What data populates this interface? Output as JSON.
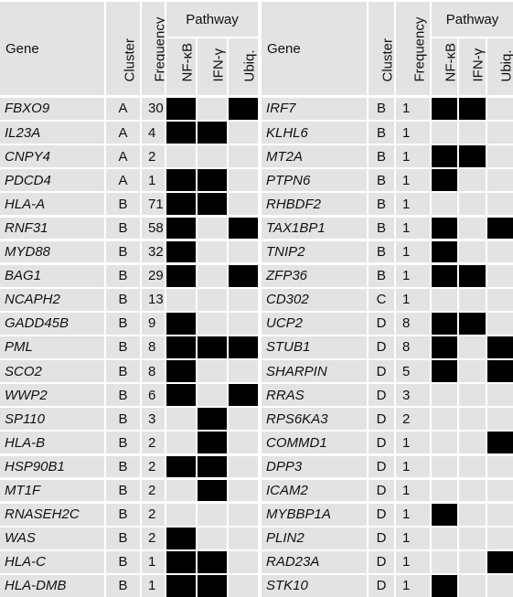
{
  "headers": {
    "gene": "Gene",
    "cluster": "Cluster",
    "frequency": "Frequency",
    "pathway": "Pathway",
    "nfkb": "NF-κB",
    "ifng": "IFN-γ",
    "ubiq": "Ubiq."
  },
  "left_rows": [
    {
      "gene": "FBXO9",
      "cluster": "A",
      "frequency": "30",
      "nfkb": true,
      "ifng": false,
      "ubiq": true
    },
    {
      "gene": "IL23A",
      "cluster": "A",
      "frequency": "4",
      "nfkb": true,
      "ifng": true,
      "ubiq": false
    },
    {
      "gene": "CNPY4",
      "cluster": "A",
      "frequency": "2",
      "nfkb": false,
      "ifng": false,
      "ubiq": false
    },
    {
      "gene": "PDCD4",
      "cluster": "A",
      "frequency": "1",
      "nfkb": true,
      "ifng": true,
      "ubiq": false
    },
    {
      "gene": "HLA-A",
      "cluster": "B",
      "frequency": "71",
      "nfkb": true,
      "ifng": true,
      "ubiq": false
    },
    {
      "gene": "RNF31",
      "cluster": "B",
      "frequency": "58",
      "nfkb": true,
      "ifng": false,
      "ubiq": true
    },
    {
      "gene": "MYD88",
      "cluster": "B",
      "frequency": "32",
      "nfkb": true,
      "ifng": false,
      "ubiq": false
    },
    {
      "gene": "BAG1",
      "cluster": "B",
      "frequency": "29",
      "nfkb": true,
      "ifng": false,
      "ubiq": true
    },
    {
      "gene": "NCAPH2",
      "cluster": "B",
      "frequency": "13",
      "nfkb": false,
      "ifng": false,
      "ubiq": false
    },
    {
      "gene": "GADD45B",
      "cluster": "B",
      "frequency": "9",
      "nfkb": true,
      "ifng": false,
      "ubiq": false
    },
    {
      "gene": "PML",
      "cluster": "B",
      "frequency": "8",
      "nfkb": true,
      "ifng": true,
      "ubiq": true
    },
    {
      "gene": "SCO2",
      "cluster": "B",
      "frequency": "8",
      "nfkb": true,
      "ifng": false,
      "ubiq": false
    },
    {
      "gene": "WWP2",
      "cluster": "B",
      "frequency": "6",
      "nfkb": true,
      "ifng": false,
      "ubiq": true
    },
    {
      "gene": "SP110",
      "cluster": "B",
      "frequency": "3",
      "nfkb": false,
      "ifng": true,
      "ubiq": false
    },
    {
      "gene": "HLA-B",
      "cluster": "B",
      "frequency": "2",
      "nfkb": false,
      "ifng": true,
      "ubiq": false
    },
    {
      "gene": "HSP90B1",
      "cluster": "B",
      "frequency": "2",
      "nfkb": true,
      "ifng": true,
      "ubiq": false
    },
    {
      "gene": "MT1F",
      "cluster": "B",
      "frequency": "2",
      "nfkb": false,
      "ifng": true,
      "ubiq": false
    },
    {
      "gene": "RNASEH2C",
      "cluster": "B",
      "frequency": "2",
      "nfkb": false,
      "ifng": false,
      "ubiq": false
    },
    {
      "gene": "WAS",
      "cluster": "B",
      "frequency": "2",
      "nfkb": true,
      "ifng": false,
      "ubiq": false
    },
    {
      "gene": "HLA-C",
      "cluster": "B",
      "frequency": "1",
      "nfkb": true,
      "ifng": true,
      "ubiq": false
    },
    {
      "gene": "HLA-DMB",
      "cluster": "B",
      "frequency": "1",
      "nfkb": true,
      "ifng": true,
      "ubiq": false
    }
  ],
  "right_rows": [
    {
      "gene": "IRF7",
      "cluster": "B",
      "frequency": "1",
      "nfkb": true,
      "ifng": true,
      "ubiq": false
    },
    {
      "gene": "KLHL6",
      "cluster": "B",
      "frequency": "1",
      "nfkb": false,
      "ifng": false,
      "ubiq": false
    },
    {
      "gene": "MT2A",
      "cluster": "B",
      "frequency": "1",
      "nfkb": true,
      "ifng": true,
      "ubiq": false
    },
    {
      "gene": "PTPN6",
      "cluster": "B",
      "frequency": "1",
      "nfkb": true,
      "ifng": false,
      "ubiq": false
    },
    {
      "gene": "RHBDF2",
      "cluster": "B",
      "frequency": "1",
      "nfkb": false,
      "ifng": false,
      "ubiq": false
    },
    {
      "gene": "TAX1BP1",
      "cluster": "B",
      "frequency": "1",
      "nfkb": true,
      "ifng": false,
      "ubiq": true
    },
    {
      "gene": "TNIP2",
      "cluster": "B",
      "frequency": "1",
      "nfkb": true,
      "ifng": false,
      "ubiq": false
    },
    {
      "gene": "ZFP36",
      "cluster": "B",
      "frequency": "1",
      "nfkb": true,
      "ifng": true,
      "ubiq": false
    },
    {
      "gene": "CD302",
      "cluster": "C",
      "frequency": "1",
      "nfkb": false,
      "ifng": false,
      "ubiq": false
    },
    {
      "gene": "UCP2",
      "cluster": "D",
      "frequency": "8",
      "nfkb": true,
      "ifng": true,
      "ubiq": false
    },
    {
      "gene": "STUB1",
      "cluster": "D",
      "frequency": "8",
      "nfkb": true,
      "ifng": false,
      "ubiq": true
    },
    {
      "gene": "SHARPIN",
      "cluster": "D",
      "frequency": "5",
      "nfkb": true,
      "ifng": false,
      "ubiq": true
    },
    {
      "gene": "RRAS",
      "cluster": "D",
      "frequency": "3",
      "nfkb": false,
      "ifng": false,
      "ubiq": false
    },
    {
      "gene": "RPS6KA3",
      "cluster": "D",
      "frequency": "2",
      "nfkb": false,
      "ifng": false,
      "ubiq": false
    },
    {
      "gene": "COMMD1",
      "cluster": "D",
      "frequency": "1",
      "nfkb": false,
      "ifng": false,
      "ubiq": true
    },
    {
      "gene": "DPP3",
      "cluster": "D",
      "frequency": "1",
      "nfkb": false,
      "ifng": false,
      "ubiq": false
    },
    {
      "gene": "ICAM2",
      "cluster": "D",
      "frequency": "1",
      "nfkb": false,
      "ifng": false,
      "ubiq": false
    },
    {
      "gene": "MYBBP1A",
      "cluster": "D",
      "frequency": "1",
      "nfkb": true,
      "ifng": false,
      "ubiq": false
    },
    {
      "gene": "PLIN2",
      "cluster": "D",
      "frequency": "1",
      "nfkb": false,
      "ifng": false,
      "ubiq": false
    },
    {
      "gene": "RAD23A",
      "cluster": "D",
      "frequency": "1",
      "nfkb": false,
      "ifng": false,
      "ubiq": true
    },
    {
      "gene": "STK10",
      "cluster": "D",
      "frequency": "1",
      "nfkb": true,
      "ifng": false,
      "ubiq": false
    }
  ],
  "colors": {
    "cell_bg": "#e3e3e3",
    "marked": "#000000",
    "gap": "#ffffff"
  }
}
